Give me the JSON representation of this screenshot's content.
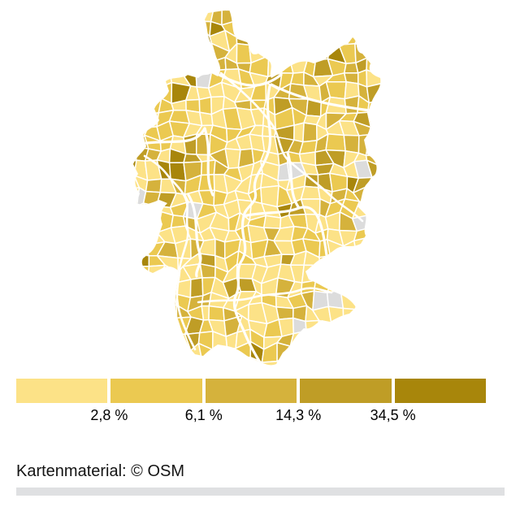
{
  "map": {
    "attribution": "Kartenmaterial: © OSM",
    "no_data_color": "#dcdcdc",
    "border_color": "#ffffff"
  },
  "legend": {
    "labels": [
      "2,8 %",
      "6,1 %",
      "14,3 %",
      "34,5 %"
    ],
    "colors": [
      "#fce287",
      "#ebc951",
      "#d5b23c",
      "#bf9d26",
      "#a8860b"
    ]
  },
  "chart_data": {
    "type": "heatmap",
    "subtype": "choropleth-map",
    "region": "Germany, district level (Kreise)",
    "title": "",
    "legend_position": "bottom",
    "class_breaks_labels": [
      "2,8 %",
      "6,1 %",
      "14,3 %",
      "34,5 %"
    ],
    "class_colors": [
      "#fce287",
      "#ebc951",
      "#d5b23c",
      "#bf9d26",
      "#a8860b"
    ],
    "no_data_color": "#dcdcdc",
    "value_unit": "%",
    "attribution": "Kartenmaterial: © OSM"
  }
}
